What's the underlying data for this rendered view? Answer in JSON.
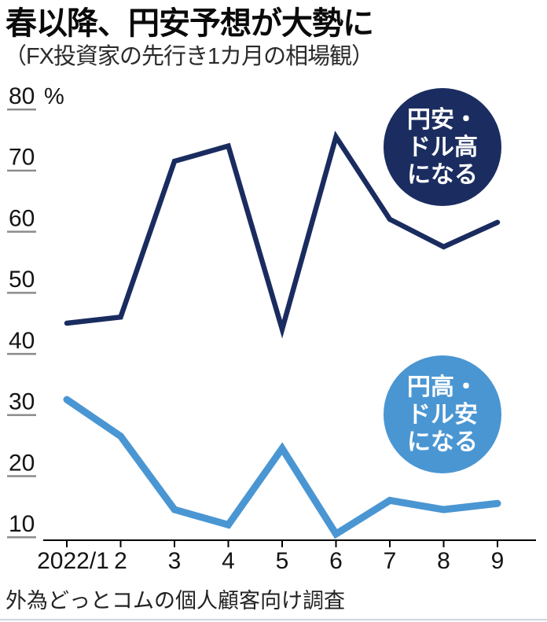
{
  "header": {
    "title": "春以降、円安予想が大勢に",
    "subtitle": "（FX投資家の先行き1カ月の相場観）"
  },
  "chart_data": {
    "type": "line",
    "title": "春以降、円安予想が大勢に",
    "subtitle": "（FX投資家の先行き1カ月の相場観）",
    "unit": "%",
    "x_labels": [
      "2022/1",
      "2",
      "3",
      "4",
      "5",
      "6",
      "7",
      "8",
      "9"
    ],
    "y_ticks": [
      80,
      70,
      60,
      50,
      40,
      30,
      20,
      10
    ],
    "ylim": [
      10,
      80
    ],
    "grid": false,
    "legend_position": "on-chart-badges",
    "series": [
      {
        "name": "円安・ドル高になる",
        "color": "#1a2c5f",
        "values": [
          45,
          46,
          71.5,
          74,
          44,
          75.5,
          62,
          57.5,
          61.5
        ],
        "badge_lines": [
          "円安・",
          "ドル高",
          "になる"
        ]
      },
      {
        "name": "円高・ドル安になる",
        "color": "#4a96d3",
        "values": [
          32.5,
          26.5,
          14.5,
          12,
          24.5,
          10.5,
          16,
          14.5,
          15.5
        ],
        "badge_lines": [
          "円高・",
          "ドル安",
          "になる"
        ]
      }
    ],
    "source": "外為どっとコムの個人顧客向け調査"
  }
}
